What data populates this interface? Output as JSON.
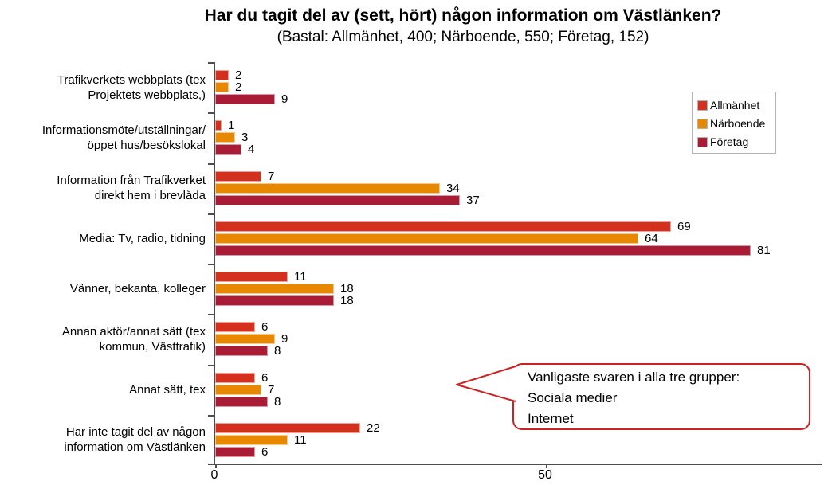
{
  "title": "Har du tagit del av (sett, hört) någon information om Västlänken?",
  "subtitle": "(Bastal: Allmänhet, 400; Närboende, 550; Företag, 152)",
  "chart_data": {
    "type": "bar",
    "orientation": "horizontal",
    "title": "Har du tagit del av (sett, hört) någon information om Västlänken?",
    "subtitle": "(Bastal: Allmänhet, 400; Närboende, 550; Företag, 152)",
    "categories": [
      "Trafikverkets webbplats (tex\nProjektets webbplats,)",
      "Informationsmöte/utställningar/\nöppet hus/besökslokal",
      "Information från Trafikverket\ndirekt hem i brevlåda",
      "Media: Tv, radio, tidning",
      "Vänner, bekanta, kolleger",
      "Annan aktör/annat sätt (tex\nkommun, Västtrafik)",
      "Annat sätt, tex",
      "Har inte tagit del av någon\ninformation om Västlänken"
    ],
    "series": [
      {
        "name": "Allmänhet",
        "color": "#d4301e",
        "values": [
          2,
          1,
          7,
          69,
          11,
          6,
          6,
          22
        ]
      },
      {
        "name": "Närboende",
        "color": "#e88700",
        "values": [
          2,
          3,
          34,
          64,
          18,
          9,
          7,
          11
        ]
      },
      {
        "name": "Företag",
        "color": "#a81d35",
        "values": [
          9,
          4,
          37,
          81,
          18,
          8,
          8,
          6
        ]
      }
    ],
    "xlim": [
      0,
      92
    ],
    "xticks": [
      0,
      50
    ],
    "grid": false,
    "legend_position": "top-right",
    "value_labels": true
  },
  "legend": {
    "items": [
      {
        "label": "Allmänhet",
        "color": "#d4301e"
      },
      {
        "label": "Närboende",
        "color": "#e88700"
      },
      {
        "label": "Företag",
        "color": "#a81d35"
      }
    ]
  },
  "callout": {
    "lines": [
      "Vanligaste svaren i alla tre grupper:",
      "Sociala medier",
      "Internet"
    ],
    "border_color": "#cc2222"
  },
  "axis": {
    "color": "#4d4d4d"
  }
}
